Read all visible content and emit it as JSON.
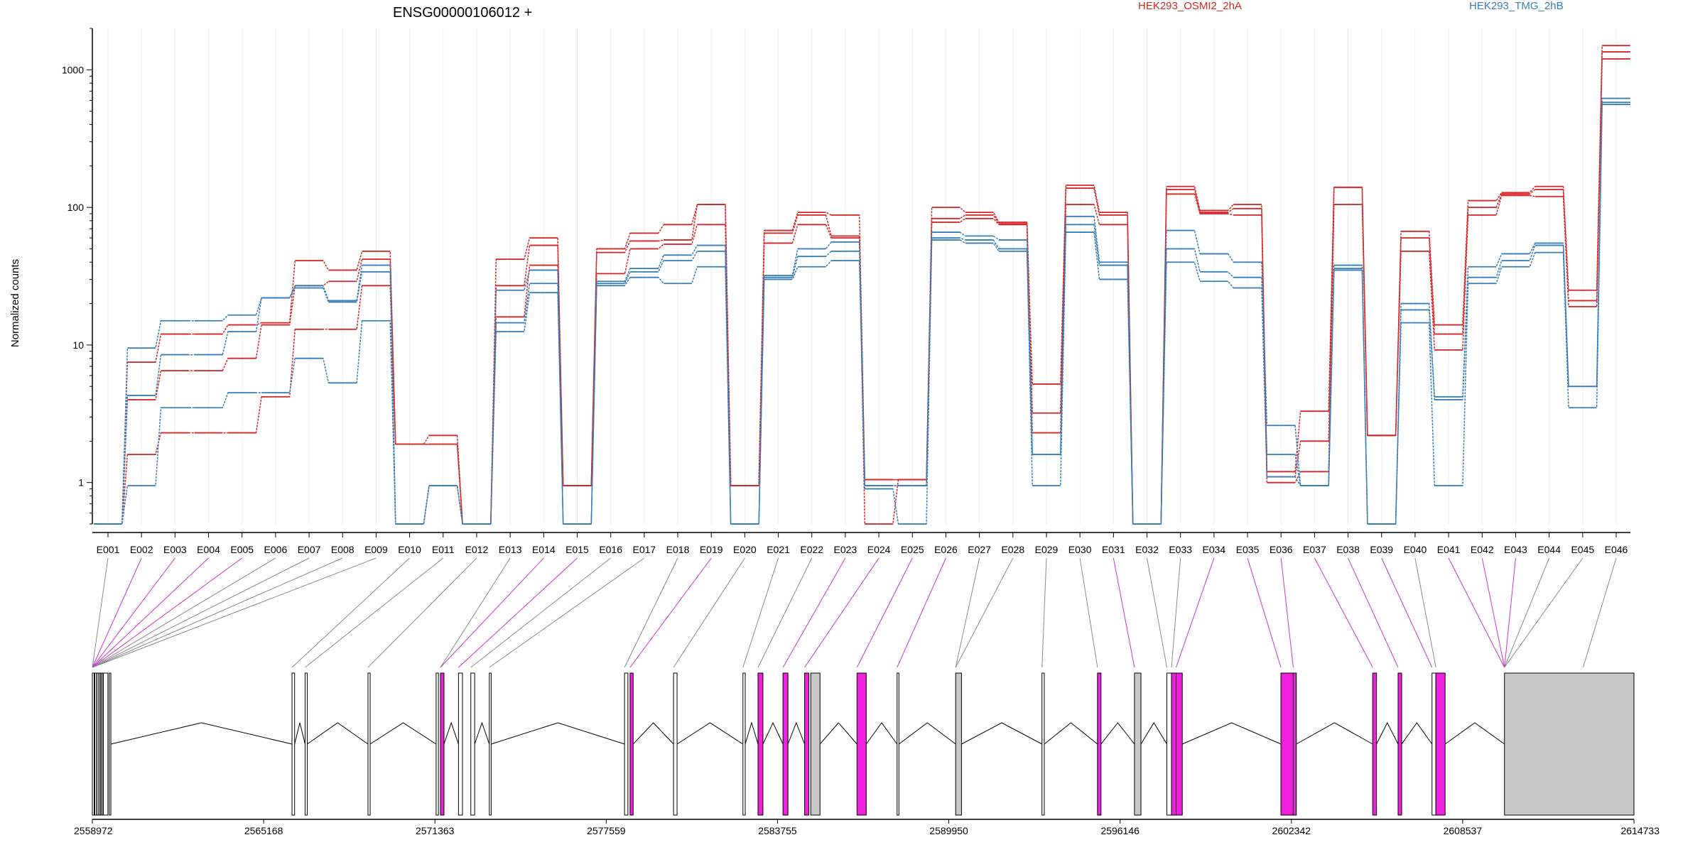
{
  "chart_data": {
    "type": "line",
    "title": "ENSG00000106012 +",
    "ylabel": "Normalized counts",
    "yscale": "log",
    "ylim": [
      0.5,
      2000
    ],
    "yticks": [
      1,
      10,
      100,
      1000
    ],
    "ytick_labels": [
      "1",
      "10",
      "100",
      "1000"
    ],
    "categories": [
      "E001",
      "E002",
      "E003",
      "E004",
      "E005",
      "E006",
      "E007",
      "E008",
      "E009",
      "E010",
      "E011",
      "E012",
      "E013",
      "E014",
      "E015",
      "E016",
      "E017",
      "E018",
      "E019",
      "E020",
      "E021",
      "E022",
      "E023",
      "E024",
      "E025",
      "E026",
      "E027",
      "E028",
      "E029",
      "E030",
      "E031",
      "E032",
      "E033",
      "E034",
      "E035",
      "E036",
      "E037",
      "E038",
      "E039",
      "E040",
      "E041",
      "E042",
      "E043",
      "E044",
      "E045",
      "E046"
    ],
    "legend": [
      {
        "name": "HEK293_OSMI2_2hA",
        "color": "#d62728"
      },
      {
        "name": "HEK293_TMG_2hB",
        "color": "#377eb8"
      }
    ],
    "series": [
      {
        "group": "HEK293_OSMI2_2hA",
        "color": "#d62728",
        "values": [
          0.5,
          7.5,
          12,
          12,
          14,
          14.5,
          41,
          35,
          48,
          1.9,
          2.2,
          0.5,
          42,
          60,
          0.95,
          50,
          65,
          75,
          105,
          0.95,
          68,
          92,
          88,
          1.05,
          1.05,
          100,
          92,
          78,
          5.2,
          145,
          92,
          0.5,
          142,
          95,
          105,
          1.2,
          3.3,
          140,
          2.2,
          67,
          14,
          112,
          128,
          142,
          25,
          1500
        ]
      },
      {
        "group": "HEK293_OSMI2_2hA",
        "color": "#d62728",
        "values": [
          0.5,
          4,
          6.5,
          6.5,
          8,
          14,
          27,
          29,
          42,
          1.9,
          1.9,
          0.5,
          27,
          53,
          0.95,
          47,
          57,
          58,
          105,
          0.95,
          65,
          88,
          62,
          1.05,
          1.05,
          83,
          88,
          76,
          3.2,
          138,
          88,
          0.5,
          135,
          92,
          98,
          1.1,
          2,
          140,
          2.2,
          60,
          12,
          100,
          125,
          135,
          21,
          1350
        ]
      },
      {
        "group": "HEK293_OSMI2_2hA",
        "color": "#d62728",
        "values": [
          0.5,
          1.6,
          2.3,
          2.3,
          2.3,
          4.2,
          13,
          13,
          27,
          1.9,
          1.9,
          0.5,
          16,
          38,
          0.95,
          33,
          50,
          54,
          75,
          0.95,
          55,
          75,
          60,
          0.5,
          1.05,
          78,
          83,
          75,
          2.3,
          105,
          75,
          0.5,
          125,
          90,
          88,
          1,
          1.2,
          105,
          2.2,
          48,
          9.2,
          88,
          122,
          120,
          19,
          1200
        ]
      },
      {
        "group": "HEK293_TMG_2hB",
        "color": "#377eb8",
        "values": [
          0.5,
          9.5,
          15,
          15,
          16.5,
          22,
          27,
          21,
          38,
          0.5,
          0.95,
          0.5,
          25,
          35,
          0.5,
          29,
          36,
          45,
          53,
          0.5,
          32,
          50,
          56,
          0.95,
          0.95,
          66,
          62,
          58,
          1.6,
          86,
          40,
          0.5,
          68,
          46,
          40,
          2.6,
          0.95,
          38,
          0.5,
          20,
          4.2,
          37,
          46,
          55,
          5,
          620
        ]
      },
      {
        "group": "HEK293_TMG_2hB",
        "color": "#377eb8",
        "values": [
          0.5,
          4.3,
          8.5,
          8.5,
          12.5,
          22,
          26,
          20.5,
          34,
          0.5,
          0.95,
          0.5,
          14.5,
          28,
          0.5,
          28,
          34,
          41,
          48,
          0.5,
          31,
          44,
          48,
          0.95,
          0.95,
          60,
          58,
          50,
          1.6,
          75,
          38,
          0.5,
          50,
          34,
          31,
          1.6,
          0.95,
          36,
          0.5,
          18,
          4,
          31,
          41,
          53,
          5,
          580
        ]
      },
      {
        "group": "HEK293_TMG_2hB",
        "color": "#377eb8",
        "values": [
          0.5,
          0.95,
          3.5,
          3.5,
          4.5,
          4.5,
          8,
          5.3,
          15,
          0.5,
          0.95,
          0.5,
          12.5,
          24,
          0.5,
          27,
          31,
          28,
          37,
          0.5,
          30,
          37,
          41,
          0.9,
          0.5,
          58,
          55,
          48,
          0.95,
          66,
          30,
          0.5,
          40,
          29,
          26,
          1.1,
          0.95,
          35,
          0.5,
          14.5,
          0.95,
          28,
          37,
          47,
          3.5,
          560
        ]
      }
    ],
    "gene_model": {
      "coord_ticks": [
        2558972,
        2565168,
        2571363,
        2577559,
        2583755,
        2589950,
        2596146,
        2602342,
        2608537,
        2614733
      ],
      "coord_range": [
        2558972,
        2614733
      ]
    }
  }
}
